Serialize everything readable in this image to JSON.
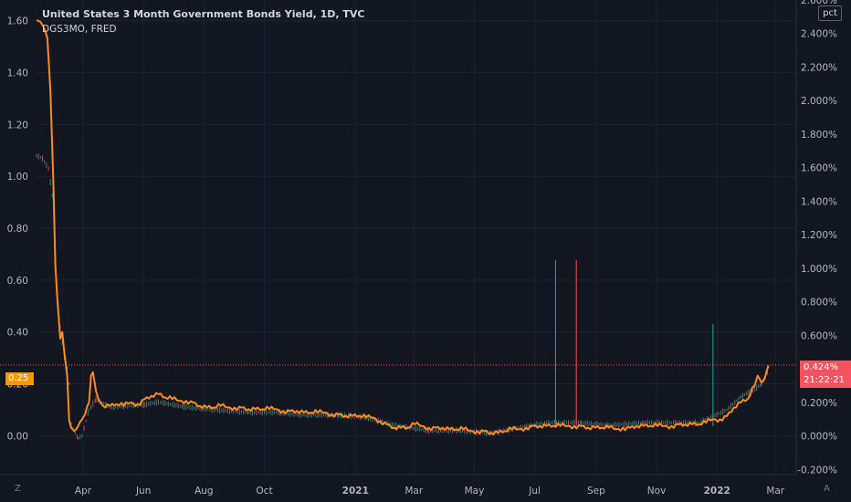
{
  "header": {
    "title": "United States 3 Month Government Bonds Yield, 1D, TVC",
    "subtitle": "DGS3MO, FRED"
  },
  "unit_badge": "pct",
  "left_price_tag": "0.25",
  "right_price_tag": {
    "value": "0.424%",
    "countdown": "21:22:21"
  },
  "corners": {
    "bottom_left": "Z",
    "bottom_right": "A"
  },
  "colors": {
    "background": "#131722",
    "grid": "#1f2330",
    "primary_line": "#ff8a1f",
    "candle_up": "#26a69a",
    "candle_down": "#ef5350",
    "text": "#b2b5be"
  },
  "chart_data": {
    "type": "line",
    "title": "United States 3 Month Government Bonds Yield, 1D, TVC",
    "left_axis": {
      "ticks": [
        "1.60",
        "1.40",
        "1.20",
        "1.00",
        "0.80",
        "0.60",
        "0.40",
        "0.20",
        "0.00"
      ],
      "range": [
        -0.15,
        1.68
      ]
    },
    "right_axis": {
      "ticks": [
        "2.600%",
        "2.400%",
        "2.200%",
        "2.000%",
        "1.800%",
        "1.600%",
        "1.400%",
        "1.200%",
        "1.000%",
        "0.800%",
        "0.600%",
        "0.400%",
        "0.200%",
        "0.000%",
        "-0.200%"
      ],
      "range": [
        -0.23,
        2.6
      ]
    },
    "x_axis": {
      "labels": [
        "Apr",
        "Jun",
        "Aug",
        "Oct",
        "2021",
        "Mar",
        "May",
        "Jul",
        "Sep",
        "Nov",
        "2022",
        "Mar"
      ],
      "label_dates": [
        "2020-04-01",
        "2020-06-01",
        "2020-08-01",
        "2020-10-01",
        "2021-01-01",
        "2021-03-01",
        "2021-05-01",
        "2021-07-01",
        "2021-09-01",
        "2021-11-01",
        "2022-01-01",
        "2022-03-01"
      ],
      "range": [
        "2020-02-14",
        "2022-03-22"
      ]
    },
    "series": [
      {
        "axis": "right",
        "points": [
          [
            "2020-02-14",
            2.48
          ],
          [
            "2020-02-18",
            2.47
          ],
          [
            "2020-02-21",
            2.44
          ],
          [
            "2020-02-25",
            2.37
          ],
          [
            "2020-02-28",
            2.06
          ],
          [
            "2020-03-02",
            1.52
          ],
          [
            "2020-03-04",
            1.02
          ],
          [
            "2020-03-06",
            0.82
          ],
          [
            "2020-03-09",
            0.58
          ],
          [
            "2020-03-11",
            0.62
          ],
          [
            "2020-03-13",
            0.5
          ],
          [
            "2020-03-16",
            0.36
          ],
          [
            "2020-03-18",
            0.09
          ],
          [
            "2020-03-20",
            0.05
          ],
          [
            "2020-03-23",
            0.03
          ],
          [
            "2020-03-25",
            0.04
          ],
          [
            "2020-03-27",
            0.06
          ],
          [
            "2020-03-31",
            0.1
          ],
          [
            "2020-04-03",
            0.13
          ],
          [
            "2020-04-07",
            0.2
          ],
          [
            "2020-04-09",
            0.36
          ],
          [
            "2020-04-11",
            0.38
          ],
          [
            "2020-04-14",
            0.27
          ],
          [
            "2020-04-17",
            0.21
          ],
          [
            "2020-04-21",
            0.18
          ],
          [
            "2020-04-28",
            0.18
          ],
          [
            "2020-05-05",
            0.19
          ],
          [
            "2020-05-12",
            0.18
          ],
          [
            "2020-05-19",
            0.2
          ],
          [
            "2020-05-26",
            0.19
          ],
          [
            "2020-06-02",
            0.22
          ],
          [
            "2020-06-09",
            0.24
          ],
          [
            "2020-06-16",
            0.25
          ],
          [
            "2020-06-23",
            0.23
          ],
          [
            "2020-06-30",
            0.22
          ],
          [
            "2020-07-07",
            0.21
          ],
          [
            "2020-07-14",
            0.21
          ],
          [
            "2020-07-21",
            0.2
          ],
          [
            "2020-07-28",
            0.18
          ],
          [
            "2020-08-04",
            0.17
          ],
          [
            "2020-08-11",
            0.17
          ],
          [
            "2020-08-18",
            0.18
          ],
          [
            "2020-08-25",
            0.17
          ],
          [
            "2020-09-01",
            0.17
          ],
          [
            "2020-09-08",
            0.17
          ],
          [
            "2020-09-15",
            0.16
          ],
          [
            "2020-09-22",
            0.16
          ],
          [
            "2020-09-29",
            0.16
          ],
          [
            "2020-10-06",
            0.16
          ],
          [
            "2020-10-13",
            0.16
          ],
          [
            "2020-10-20",
            0.15
          ],
          [
            "2020-10-27",
            0.15
          ],
          [
            "2020-11-03",
            0.15
          ],
          [
            "2020-11-10",
            0.14
          ],
          [
            "2020-11-17",
            0.14
          ],
          [
            "2020-11-24",
            0.14
          ],
          [
            "2020-12-01",
            0.14
          ],
          [
            "2020-12-08",
            0.13
          ],
          [
            "2020-12-15",
            0.13
          ],
          [
            "2020-12-22",
            0.12
          ],
          [
            "2020-12-29",
            0.12
          ],
          [
            "2021-01-05",
            0.12
          ],
          [
            "2021-01-12",
            0.11
          ],
          [
            "2021-01-19",
            0.11
          ],
          [
            "2021-01-26",
            0.09
          ],
          [
            "2021-02-02",
            0.07
          ],
          [
            "2021-02-09",
            0.05
          ],
          [
            "2021-02-16",
            0.05
          ],
          [
            "2021-02-23",
            0.05
          ],
          [
            "2021-03-02",
            0.07
          ],
          [
            "2021-03-09",
            0.06
          ],
          [
            "2021-03-16",
            0.05
          ],
          [
            "2021-03-23",
            0.05
          ],
          [
            "2021-03-30",
            0.05
          ],
          [
            "2021-04-06",
            0.04
          ],
          [
            "2021-04-13",
            0.04
          ],
          [
            "2021-04-20",
            0.04
          ],
          [
            "2021-04-27",
            0.03
          ],
          [
            "2021-05-04",
            0.03
          ],
          [
            "2021-05-11",
            0.03
          ],
          [
            "2021-05-18",
            0.02
          ],
          [
            "2021-05-25",
            0.02
          ],
          [
            "2021-06-01",
            0.03
          ],
          [
            "2021-06-08",
            0.04
          ],
          [
            "2021-06-15",
            0.04
          ],
          [
            "2021-06-22",
            0.05
          ],
          [
            "2021-06-29",
            0.06
          ],
          [
            "2021-07-06",
            0.06
          ],
          [
            "2021-07-13",
            0.06
          ],
          [
            "2021-07-20",
            0.06
          ],
          [
            "2021-07-27",
            0.06
          ],
          [
            "2021-08-03",
            0.06
          ],
          [
            "2021-08-10",
            0.06
          ],
          [
            "2021-08-17",
            0.06
          ],
          [
            "2021-08-24",
            0.05
          ],
          [
            "2021-08-31",
            0.05
          ],
          [
            "2021-09-07",
            0.05
          ],
          [
            "2021-09-14",
            0.05
          ],
          [
            "2021-09-21",
            0.04
          ],
          [
            "2021-09-28",
            0.05
          ],
          [
            "2021-10-05",
            0.05
          ],
          [
            "2021-10-12",
            0.06
          ],
          [
            "2021-10-19",
            0.06
          ],
          [
            "2021-10-26",
            0.06
          ],
          [
            "2021-11-02",
            0.06
          ],
          [
            "2021-11-09",
            0.06
          ],
          [
            "2021-11-16",
            0.06
          ],
          [
            "2021-11-23",
            0.07
          ],
          [
            "2021-11-30",
            0.07
          ],
          [
            "2021-12-07",
            0.07
          ],
          [
            "2021-12-14",
            0.07
          ],
          [
            "2021-12-21",
            0.08
          ],
          [
            "2021-12-28",
            0.1
          ],
          [
            "2022-01-04",
            0.1
          ],
          [
            "2022-01-11",
            0.12
          ],
          [
            "2022-01-18",
            0.17
          ],
          [
            "2022-01-25",
            0.2
          ],
          [
            "2022-02-01",
            0.22
          ],
          [
            "2022-02-08",
            0.3
          ],
          [
            "2022-02-11",
            0.36
          ],
          [
            "2022-02-15",
            0.32
          ],
          [
            "2022-02-18",
            0.34
          ],
          [
            "2022-02-22",
            0.42
          ]
        ]
      },
      {
        "axis": "left",
        "style": "candles",
        "points": [
          [
            "2020-02-14",
            1.08
          ],
          [
            "2020-02-20",
            1.07
          ],
          [
            "2020-02-26",
            1.03
          ],
          [
            "2020-03-02",
            0.9
          ],
          [
            "2020-03-05",
            0.6
          ],
          [
            "2020-03-09",
            0.42
          ],
          [
            "2020-03-13",
            0.3
          ],
          [
            "2020-03-16",
            0.26
          ],
          [
            "2020-03-18",
            0.2
          ],
          [
            "2020-03-20",
            0.04
          ],
          [
            "2020-03-24",
            0.01
          ],
          [
            "2020-03-27",
            -0.01
          ],
          [
            "2020-03-31",
            0.0
          ],
          [
            "2020-04-07",
            0.1
          ],
          [
            "2020-04-14",
            0.14
          ],
          [
            "2020-04-28",
            0.11
          ],
          [
            "2020-06-02",
            0.12
          ],
          [
            "2020-06-16",
            0.13
          ],
          [
            "2020-07-14",
            0.11
          ],
          [
            "2020-08-11",
            0.1
          ],
          [
            "2020-09-15",
            0.09
          ],
          [
            "2020-10-13",
            0.09
          ],
          [
            "2020-11-10",
            0.08
          ],
          [
            "2020-12-15",
            0.08
          ],
          [
            "2021-01-12",
            0.07
          ],
          [
            "2021-02-09",
            0.04
          ],
          [
            "2021-03-16",
            0.02
          ],
          [
            "2021-04-13",
            0.02
          ],
          [
            "2021-05-18",
            0.01
          ],
          [
            "2021-06-15",
            0.03
          ],
          [
            "2021-07-13",
            0.05
          ],
          [
            "2021-08-17",
            0.05
          ],
          [
            "2021-09-14",
            0.04
          ],
          [
            "2021-10-19",
            0.05
          ],
          [
            "2021-11-16",
            0.05
          ],
          [
            "2021-12-14",
            0.05
          ],
          [
            "2022-01-11",
            0.1
          ],
          [
            "2022-01-25",
            0.15
          ],
          [
            "2022-02-08",
            0.18
          ],
          [
            "2022-02-15",
            0.2
          ],
          [
            "2022-02-22",
            0.25
          ]
        ]
      }
    ],
    "spikes": [
      {
        "date": "2021-07-22",
        "value": 1.05,
        "color": "up"
      },
      {
        "date": "2021-08-12",
        "value": 1.05,
        "color": "down"
      },
      {
        "date": "2021-12-28",
        "value": 0.67,
        "color": "up"
      }
    ],
    "last_value_line": 0.424
  }
}
